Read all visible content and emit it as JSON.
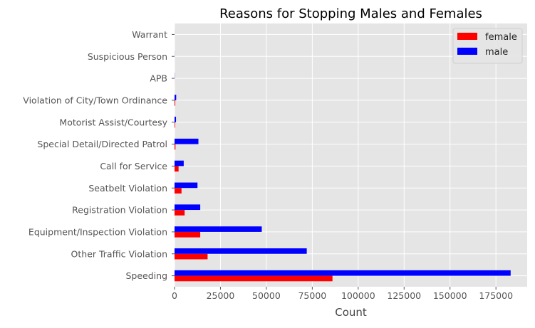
{
  "chart_data": {
    "type": "bar",
    "orientation": "horizontal",
    "title": "Reasons for Stopping Males and Females",
    "xlabel": "Count",
    "ylabel": "",
    "xlim": [
      0,
      192000
    ],
    "xticks": [
      0,
      25000,
      50000,
      75000,
      100000,
      125000,
      150000,
      175000
    ],
    "xtick_labels": [
      "0",
      "25000",
      "50000",
      "75000",
      "100000",
      "125000",
      "150000",
      "175000"
    ],
    "categories": [
      "Speeding",
      "Other Traffic Violation",
      "Equipment/Inspection Violation",
      "Registration Violation",
      "Seatbelt Violation",
      "Call for Service",
      "Special Detail/Directed Patrol",
      "Motorist Assist/Courtesy",
      "Violation of City/Town Ordinance",
      "APB",
      "Suspicious Person",
      "Warrant"
    ],
    "series": [
      {
        "name": "female",
        "color": "#ff0000",
        "values": [
          86000,
          18000,
          14000,
          5500,
          3800,
          2200,
          500,
          300,
          400,
          20,
          10,
          5
        ]
      },
      {
        "name": "male",
        "color": "#0000ff",
        "values": [
          183000,
          72000,
          47500,
          14000,
          12500,
          5000,
          13000,
          800,
          900,
          80,
          40,
          15
        ]
      }
    ],
    "legend_position": "top-right",
    "grid": true,
    "style": "ggplot",
    "plot_background": "#e5e5e5",
    "grid_color": "#ffffff"
  }
}
